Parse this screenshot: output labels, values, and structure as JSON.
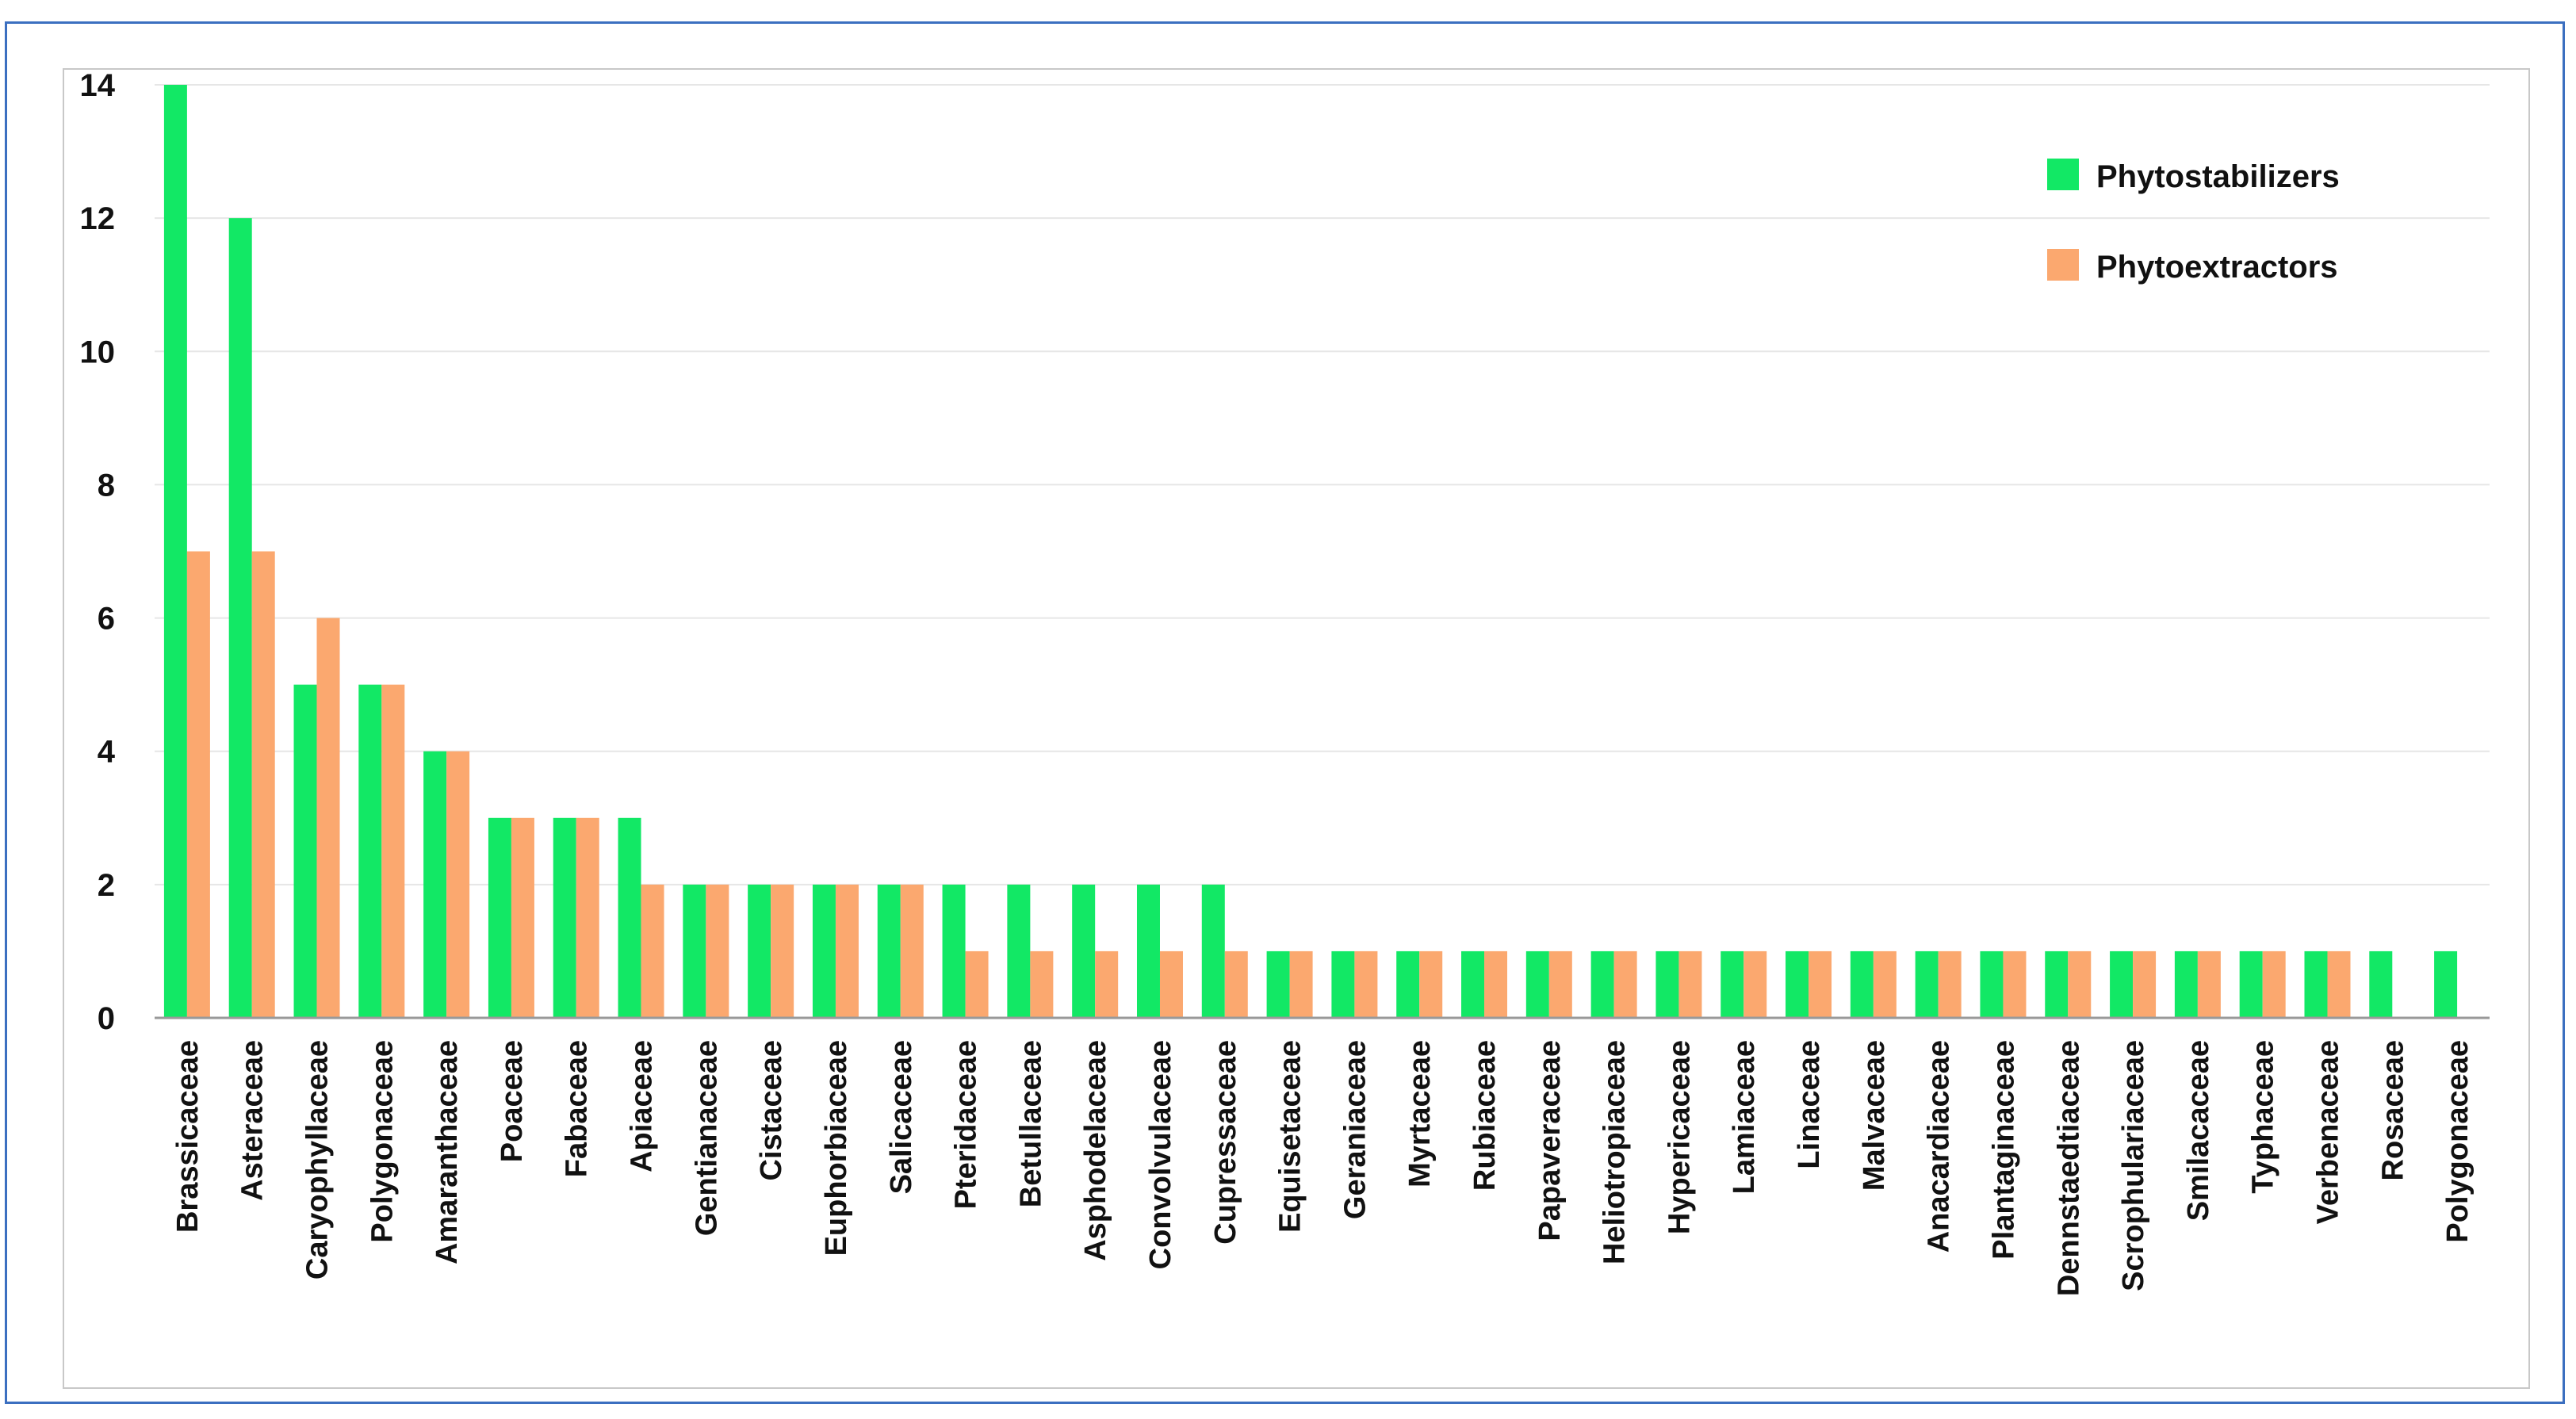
{
  "chart_data": {
    "type": "bar",
    "title": "",
    "xlabel": "",
    "ylabel": "",
    "ylim": [
      0,
      14
    ],
    "yticks": [
      0,
      2,
      4,
      6,
      8,
      10,
      12,
      14
    ],
    "grid": true,
    "legend_position": "top-right",
    "categories": [
      "Brassicaceae",
      "Asteraceae",
      "Caryophyllaceae",
      "Polygonaceae",
      "Amaranthaceae",
      "Poaceae",
      "Fabaceae",
      "Apiaceae",
      "Gentianaceae",
      "Cistaceae",
      "Euphorbiaceae",
      "Salicaceae",
      "Pteridaceae",
      "Betullaceae",
      "Asphodelaceae",
      "Convolvulaceae",
      "Cupressaceae",
      "Equisetaceae",
      "Geraniaceae",
      "Myrtaceae",
      "Rubiaceae",
      "Papaveraceae",
      "Heliotropiaceae",
      "Hypericaceae",
      "Lamiaceae",
      "Linaceae",
      "Malvaceae",
      "Anacardiaceae",
      "Plantaginaceae",
      "Dennstaedtiaceae",
      "Scrophulariaceae",
      "Smilacaceae",
      "Typhaceae",
      "Verbenaceae",
      "Rosaceae",
      "Polygonaceae"
    ],
    "series": [
      {
        "name": "Phytostabilizers",
        "color": "#12e865",
        "values": [
          14,
          12,
          5,
          5,
          4,
          3,
          3,
          3,
          2,
          2,
          2,
          2,
          2,
          2,
          2,
          2,
          2,
          1,
          1,
          1,
          1,
          1,
          1,
          1,
          1,
          1,
          1,
          1,
          1,
          1,
          1,
          1,
          1,
          1,
          1,
          1
        ]
      },
      {
        "name": "Phytoextractors",
        "color": "#fba86f",
        "values": [
          7,
          7,
          6,
          5,
          4,
          3,
          3,
          2,
          2,
          2,
          2,
          2,
          1,
          1,
          1,
          1,
          1,
          1,
          1,
          1,
          1,
          1,
          1,
          1,
          1,
          1,
          1,
          1,
          1,
          1,
          1,
          1,
          1,
          1,
          0,
          0
        ]
      }
    ]
  }
}
